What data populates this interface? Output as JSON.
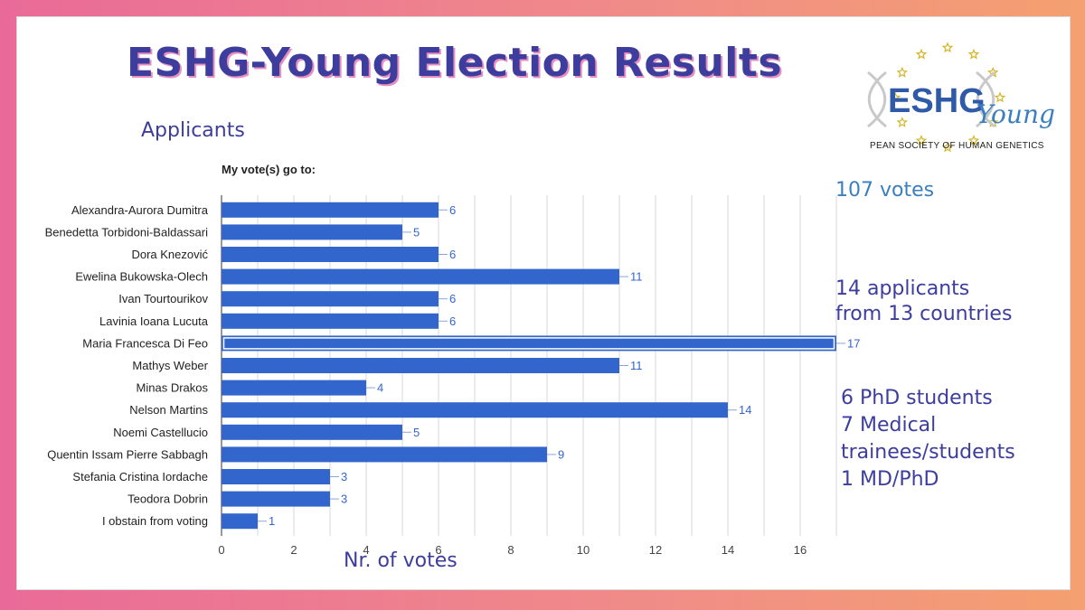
{
  "slide": {
    "title": "ESHG-Young Election Results",
    "subtitle": "Applicants",
    "xlabel": "Nr. of votes",
    "logo": {
      "main": "ESHG",
      "script": "Young",
      "caption": "PEAN SOCIETY OF HUMAN GENETICS"
    },
    "side_notes": {
      "votes": "107 votes",
      "applicants_line1": "14 applicants",
      "applicants_line2": "from 13 countries",
      "students_line1": "6 PhD students",
      "students_line2": "7 Medical",
      "students_line3": "trainees/students",
      "students_line4": "1 MD/PhD"
    }
  },
  "chart_data": {
    "type": "bar",
    "orientation": "horizontal",
    "title": "My vote(s) go to:",
    "categories": [
      "Alexandra-Aurora Dumitra",
      "Benedetta Torbidoni-Baldassari",
      "Dora Knezović",
      "Ewelina Bukowska-Olech",
      "Ivan Tourtourikov",
      "Lavinia Ioana Lucuta",
      "Maria Francesca Di Feo",
      "Mathys Weber",
      "Minas Drakos",
      "Nelson Martins",
      "Noemi Castellucio",
      "Quentin Issam Pierre Sabbagh",
      "Stefania Cristina Iordache",
      "Teodora Dobrin",
      "I obstain from voting"
    ],
    "values": [
      6,
      5,
      6,
      11,
      6,
      6,
      17,
      11,
      4,
      14,
      5,
      9,
      3,
      3,
      1
    ],
    "highlighted_index": 6,
    "xlim": [
      0,
      18
    ],
    "xticks": [
      0,
      2,
      4,
      6,
      8,
      10,
      12,
      14,
      16
    ],
    "grid": true,
    "bar_color": "#3366cc",
    "label_color": "#3366cc"
  }
}
